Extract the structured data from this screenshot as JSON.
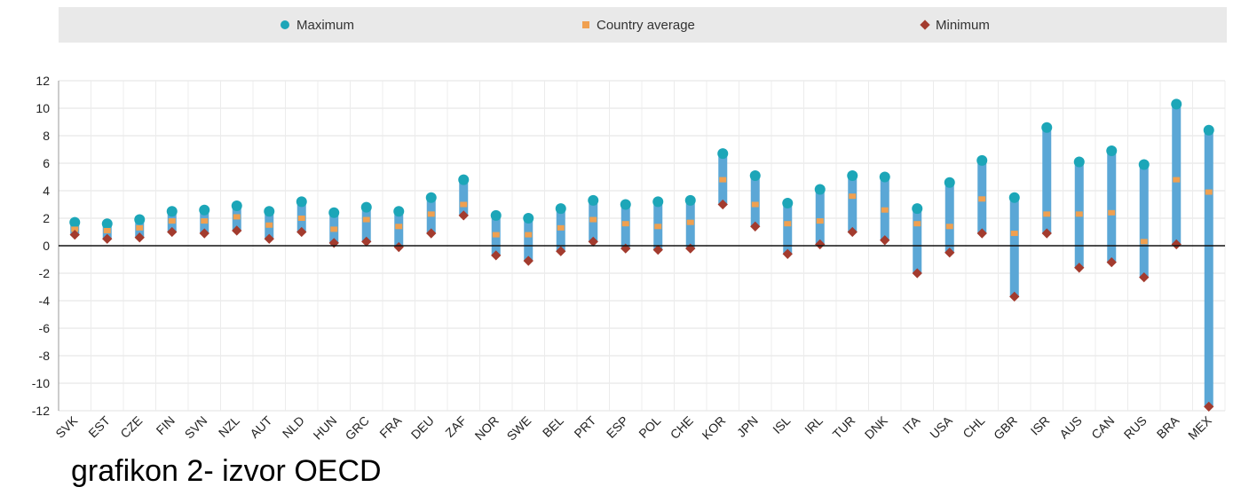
{
  "legend": {
    "items": [
      {
        "label": "Maximum",
        "color": "#1ca6b8",
        "marker": "circle"
      },
      {
        "label": "Country average",
        "color": "#f0a050",
        "marker": "square"
      },
      {
        "label": "Minimum",
        "color": "#a33b2e",
        "marker": "diamond"
      }
    ]
  },
  "caption": "grafikon 2- izvor OECD",
  "chart_data": {
    "type": "range-bar",
    "categories": [
      "SVK",
      "EST",
      "CZE",
      "FIN",
      "SVN",
      "NZL",
      "AUT",
      "NLD",
      "HUN",
      "GRC",
      "FRA",
      "DEU",
      "ZAF",
      "NOR",
      "SWE",
      "BEL",
      "PRT",
      "ESP",
      "POL",
      "CHE",
      "KOR",
      "JPN",
      "ISL",
      "IRL",
      "TUR",
      "DNK",
      "ITA",
      "USA",
      "CHL",
      "GBR",
      "ISR",
      "AUS",
      "CAN",
      "RUS",
      "BRA",
      "MEX"
    ],
    "series": [
      {
        "name": "Maximum",
        "values": [
          1.7,
          1.6,
          1.9,
          2.5,
          2.6,
          2.9,
          2.5,
          3.2,
          2.4,
          2.8,
          2.5,
          3.5,
          4.8,
          2.2,
          2.0,
          2.7,
          3.3,
          3.0,
          3.2,
          3.3,
          6.7,
          5.1,
          3.1,
          4.1,
          5.1,
          5.0,
          2.7,
          4.6,
          6.2,
          3.5,
          8.6,
          6.1,
          6.9,
          5.9,
          10.3,
          8.4
        ]
      },
      {
        "name": "Country average",
        "values": [
          1.2,
          1.1,
          1.3,
          1.8,
          1.8,
          2.1,
          1.5,
          2.0,
          1.2,
          1.9,
          1.4,
          2.3,
          3.0,
          0.8,
          0.8,
          1.3,
          1.9,
          1.6,
          1.4,
          1.7,
          4.8,
          3.0,
          1.6,
          1.8,
          3.6,
          2.6,
          1.6,
          1.4,
          3.4,
          0.9,
          2.3,
          2.3,
          2.4,
          0.3,
          4.8,
          3.9
        ]
      },
      {
        "name": "Minimum",
        "values": [
          0.8,
          0.5,
          0.6,
          1.0,
          0.9,
          1.1,
          0.5,
          1.0,
          0.2,
          0.3,
          -0.1,
          0.9,
          2.2,
          -0.7,
          -1.1,
          -0.4,
          0.3,
          -0.2,
          -0.3,
          -0.2,
          3.0,
          1.4,
          -0.6,
          0.1,
          1.0,
          0.4,
          -2.0,
          -0.5,
          0.9,
          -3.7,
          0.9,
          -1.6,
          -1.2,
          -2.3,
          0.1,
          -11.7
        ]
      }
    ],
    "yticks": [
      -12,
      -10,
      -8,
      -6,
      -4,
      -2,
      0,
      2,
      4,
      6,
      8,
      10,
      12
    ],
    "ylim": [
      -12,
      12
    ],
    "grid": true,
    "legend_position": "top"
  }
}
